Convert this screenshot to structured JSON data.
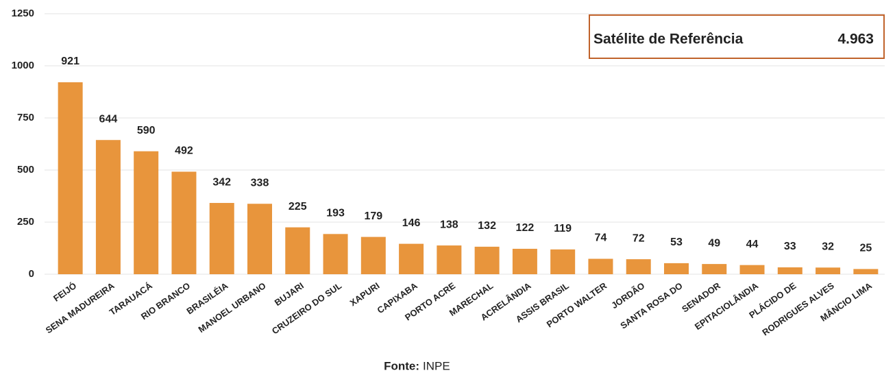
{
  "chart_data": {
    "type": "bar",
    "categories": [
      "FEIJÓ",
      "SENA MADUREIRA",
      "TARAUACÁ",
      "RIO BRANCO",
      "BRASILÉIA",
      "MANOEL URBANO",
      "BUJARI",
      "CRUZEIRO DO SUL",
      "XAPURI",
      "CAPIXABA",
      "PORTO ACRE",
      "MARECHAL",
      "ACRELÂNDIA",
      "ASSIS BRASIL",
      "PORTO WALTER",
      "JORDÃO",
      "SANTA ROSA DO",
      "SENADOR",
      "EPITACIOLÂNDIA",
      "PLÁCIDO DE",
      "RODRIGUES ALVES",
      "MÂNCIO LIMA"
    ],
    "values": [
      921,
      644,
      590,
      492,
      342,
      338,
      225,
      193,
      179,
      146,
      138,
      132,
      122,
      119,
      74,
      72,
      53,
      49,
      44,
      33,
      32,
      25
    ],
    "color": "#e8953c",
    "ylim": [
      0,
      1250
    ],
    "yticks": [
      0,
      250,
      500,
      750,
      1000,
      1250
    ],
    "grid": true,
    "annotation": {
      "label": "Satélite de Referência",
      "value": "4.963"
    },
    "source": {
      "label": "Fonte:",
      "text": "INPE"
    }
  }
}
